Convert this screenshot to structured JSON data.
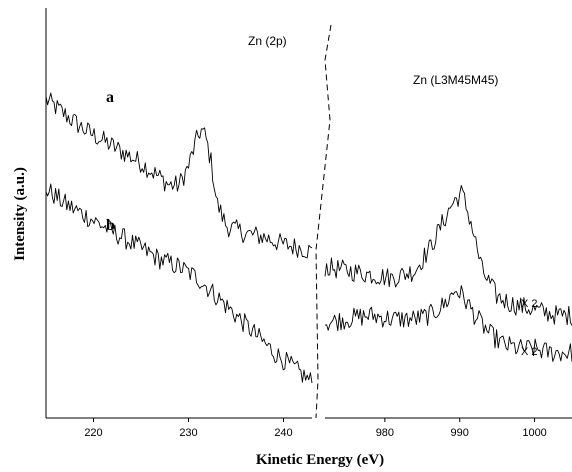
{
  "chart_data": [
    {
      "type": "line",
      "title": "Zn (2p)",
      "xlabel": "Kinetic Energy (eV)",
      "ylabel": "Intensity (a.u.)",
      "xlim": [
        215,
        243
      ],
      "ylim": [
        0,
        100
      ],
      "xticks": [
        220,
        230,
        240
      ],
      "grid": false,
      "series": [
        {
          "name": "a",
          "x": [
            215,
            217,
            219,
            221,
            223,
            225,
            227,
            228,
            229,
            230,
            230.7,
            231.3,
            231.8,
            232.4,
            233,
            234,
            236,
            238,
            240,
            242,
            243
          ],
          "y": [
            84,
            80,
            76,
            73,
            70,
            67,
            63,
            61,
            61,
            66,
            72,
            76,
            74,
            67,
            56,
            50,
            48,
            47,
            45,
            44,
            43
          ]
        },
        {
          "name": "b",
          "x": [
            215,
            217,
            219,
            221,
            223,
            225,
            227,
            229,
            231,
            233,
            235,
            237,
            239,
            241,
            243
          ],
          "y": [
            60,
            56,
            53,
            50,
            47,
            44,
            41,
            39,
            36,
            31,
            26,
            21,
            16,
            12,
            8
          ]
        }
      ],
      "annotations": [
        "a",
        "b"
      ]
    },
    {
      "type": "line",
      "title": "Zn (L3M45M45)",
      "xlabel": "Kinetic Energy (eV)",
      "xlim": [
        972,
        1005
      ],
      "ylim": [
        0,
        100
      ],
      "xticks": [
        980,
        990,
        1000
      ],
      "grid": false,
      "series": [
        {
          "name": "a",
          "x": [
            972,
            975,
            978,
            981,
            984,
            986,
            987.5,
            989,
            990.3,
            991.5,
            993,
            995,
            997,
            999,
            1001,
            1003,
            1005
          ],
          "y": [
            39,
            38,
            37,
            36,
            38,
            44,
            50,
            56,
            59,
            51,
            38,
            31,
            29,
            28,
            27,
            26,
            26
          ]
        },
        {
          "name": "b",
          "x": [
            972,
            975,
            978,
            981,
            984,
            986,
            988,
            989.5,
            990.5,
            992,
            994,
            996,
            998,
            1000,
            1002,
            1005
          ],
          "y": [
            24,
            25,
            26,
            25,
            25,
            26,
            29,
            33,
            31,
            26,
            21,
            18,
            17,
            17,
            16,
            16
          ]
        }
      ],
      "annotations": [
        "X 2",
        "X 2"
      ]
    }
  ]
}
